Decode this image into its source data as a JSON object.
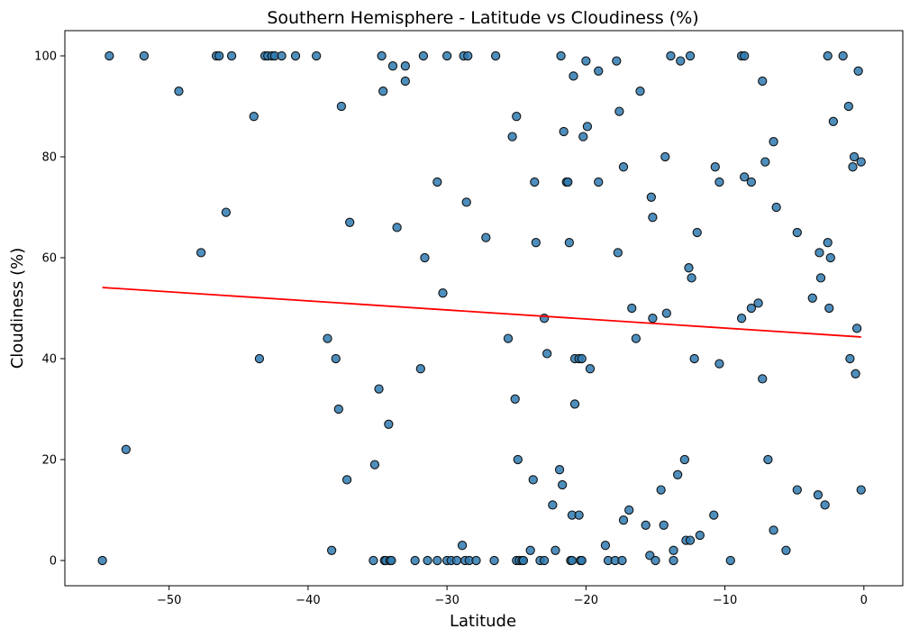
{
  "chart_data": {
    "type": "scatter",
    "title": "Southern Hemisphere - Latitude vs Cloudiness (%)",
    "xlabel": "Latitude",
    "ylabel": "Cloudiness (%)",
    "xlim": [
      -57.5,
      2.8
    ],
    "ylim": [
      -5,
      105
    ],
    "xticks": [
      -50,
      -40,
      -30,
      -20,
      -10,
      0
    ],
    "yticks": [
      0,
      20,
      40,
      60,
      80,
      100
    ],
    "xtick_labels": [
      "−50",
      "−40",
      "−30",
      "−20",
      "−10",
      "0"
    ],
    "ytick_labels": [
      "0",
      "20",
      "40",
      "60",
      "80",
      "100"
    ],
    "grid": false,
    "point_color": "#2f7ab0",
    "regression_color": "#ff0000",
    "regression_line": {
      "x": [
        -54.8,
        -0.2
      ],
      "y": [
        54.1,
        44.3
      ]
    },
    "points": [
      [
        -54.8,
        0
      ],
      [
        -54.3,
        100
      ],
      [
        -53.1,
        22
      ],
      [
        -51.8,
        100
      ],
      [
        -49.3,
        93
      ],
      [
        -47.7,
        61
      ],
      [
        -46.6,
        100
      ],
      [
        -46.4,
        100
      ],
      [
        -45.9,
        69
      ],
      [
        -45.5,
        100
      ],
      [
        -43.9,
        88
      ],
      [
        -43.5,
        40
      ],
      [
        -43.1,
        100
      ],
      [
        -42.9,
        100
      ],
      [
        -42.6,
        100
      ],
      [
        -42.4,
        100
      ],
      [
        -41.9,
        100
      ],
      [
        -40.9,
        100
      ],
      [
        -39.4,
        100
      ],
      [
        -38.6,
        44
      ],
      [
        -38.3,
        2
      ],
      [
        -38.0,
        40
      ],
      [
        -37.8,
        30
      ],
      [
        -37.6,
        90
      ],
      [
        -37.2,
        16
      ],
      [
        -37.0,
        67
      ],
      [
        -35.3,
        0
      ],
      [
        -35.2,
        19
      ],
      [
        -34.9,
        34
      ],
      [
        -34.7,
        100
      ],
      [
        -34.6,
        93
      ],
      [
        -34.5,
        0
      ],
      [
        -34.4,
        0
      ],
      [
        -34.2,
        27
      ],
      [
        -34.1,
        0
      ],
      [
        -34.0,
        0
      ],
      [
        -33.9,
        98
      ],
      [
        -33.6,
        66
      ],
      [
        -33.0,
        98
      ],
      [
        -33.0,
        95
      ],
      [
        -32.3,
        0
      ],
      [
        -31.9,
        38
      ],
      [
        -31.7,
        100
      ],
      [
        -31.6,
        60
      ],
      [
        -31.4,
        0
      ],
      [
        -30.7,
        0
      ],
      [
        -30.7,
        75
      ],
      [
        -30.3,
        53
      ],
      [
        -30.0,
        100
      ],
      [
        -30.0,
        0
      ],
      [
        -29.7,
        0
      ],
      [
        -29.3,
        0
      ],
      [
        -28.9,
        3
      ],
      [
        -28.8,
        100
      ],
      [
        -28.7,
        0
      ],
      [
        -28.6,
        71
      ],
      [
        -28.5,
        100
      ],
      [
        -28.4,
        0
      ],
      [
        -27.9,
        0
      ],
      [
        -27.2,
        64
      ],
      [
        -26.6,
        0
      ],
      [
        -26.5,
        100
      ],
      [
        -25.6,
        44
      ],
      [
        -25.3,
        84
      ],
      [
        -25.1,
        32
      ],
      [
        -25.0,
        88
      ],
      [
        -25.0,
        0
      ],
      [
        -24.9,
        20
      ],
      [
        -24.8,
        0
      ],
      [
        -24.6,
        0
      ],
      [
        -24.5,
        0
      ],
      [
        -24.0,
        2
      ],
      [
        -23.8,
        16
      ],
      [
        -23.7,
        75
      ],
      [
        -23.6,
        63
      ],
      [
        -23.3,
        0
      ],
      [
        -23.0,
        48
      ],
      [
        -23.0,
        0
      ],
      [
        -22.8,
        41
      ],
      [
        -22.4,
        11
      ],
      [
        -22.2,
        2
      ],
      [
        -21.9,
        18
      ],
      [
        -21.8,
        100
      ],
      [
        -21.7,
        15
      ],
      [
        -21.6,
        85
      ],
      [
        -21.4,
        75
      ],
      [
        -21.3,
        75
      ],
      [
        -21.2,
        63
      ],
      [
        -21.1,
        0
      ],
      [
        -21.0,
        0
      ],
      [
        -21.0,
        9
      ],
      [
        -20.9,
        96
      ],
      [
        -20.8,
        31
      ],
      [
        -20.8,
        40
      ],
      [
        -20.5,
        40
      ],
      [
        -20.5,
        9
      ],
      [
        -20.4,
        0
      ],
      [
        -20.3,
        40
      ],
      [
        -20.3,
        0
      ],
      [
        -20.2,
        84
      ],
      [
        -20.0,
        99
      ],
      [
        -19.9,
        86
      ],
      [
        -19.7,
        38
      ],
      [
        -19.1,
        97
      ],
      [
        -19.1,
        75
      ],
      [
        -18.6,
        3
      ],
      [
        -18.4,
        0
      ],
      [
        -17.9,
        0
      ],
      [
        -17.8,
        99
      ],
      [
        -17.7,
        61
      ],
      [
        -17.6,
        89
      ],
      [
        -17.4,
        0
      ],
      [
        -17.3,
        78
      ],
      [
        -17.3,
        8
      ],
      [
        -16.9,
        10
      ],
      [
        -16.7,
        50
      ],
      [
        -16.4,
        44
      ],
      [
        -16.1,
        93
      ],
      [
        -15.7,
        7
      ],
      [
        -15.4,
        1
      ],
      [
        -15.3,
        72
      ],
      [
        -15.2,
        68
      ],
      [
        -15.2,
        48
      ],
      [
        -15.0,
        0
      ],
      [
        -14.6,
        14
      ],
      [
        -14.4,
        7
      ],
      [
        -14.3,
        80
      ],
      [
        -14.2,
        49
      ],
      [
        -13.9,
        100
      ],
      [
        -13.7,
        2
      ],
      [
        -13.7,
        0
      ],
      [
        -13.4,
        17
      ],
      [
        -13.2,
        99
      ],
      [
        -12.9,
        20
      ],
      [
        -12.8,
        4
      ],
      [
        -12.6,
        58
      ],
      [
        -12.5,
        100
      ],
      [
        -12.5,
        4
      ],
      [
        -12.4,
        56
      ],
      [
        -12.2,
        40
      ],
      [
        -12.0,
        65
      ],
      [
        -11.8,
        5
      ],
      [
        -10.8,
        9
      ],
      [
        -10.7,
        78
      ],
      [
        -10.4,
        75
      ],
      [
        -10.4,
        39
      ],
      [
        -9.6,
        0
      ],
      [
        -8.8,
        48
      ],
      [
        -8.8,
        100
      ],
      [
        -8.6,
        100
      ],
      [
        -8.6,
        76
      ],
      [
        -8.1,
        75
      ],
      [
        -8.1,
        50
      ],
      [
        -7.6,
        51
      ],
      [
        -7.3,
        95
      ],
      [
        -7.3,
        36
      ],
      [
        -7.1,
        79
      ],
      [
        -6.9,
        20
      ],
      [
        -6.5,
        83
      ],
      [
        -6.5,
        6
      ],
      [
        -6.3,
        70
      ],
      [
        -5.6,
        2
      ],
      [
        -4.8,
        65
      ],
      [
        -4.8,
        14
      ],
      [
        -3.7,
        52
      ],
      [
        -3.3,
        13
      ],
      [
        -3.2,
        61
      ],
      [
        -3.1,
        56
      ],
      [
        -2.8,
        11
      ],
      [
        -2.6,
        63
      ],
      [
        -2.6,
        100
      ],
      [
        -2.5,
        50
      ],
      [
        -2.4,
        60
      ],
      [
        -2.2,
        87
      ],
      [
        -1.5,
        100
      ],
      [
        -1.1,
        90
      ],
      [
        -1.0,
        40
      ],
      [
        -0.8,
        78
      ],
      [
        -0.7,
        80
      ],
      [
        -0.6,
        37
      ],
      [
        -0.5,
        46
      ],
      [
        -0.4,
        97
      ],
      [
        -0.2,
        79
      ],
      [
        -0.2,
        14
      ]
    ]
  }
}
